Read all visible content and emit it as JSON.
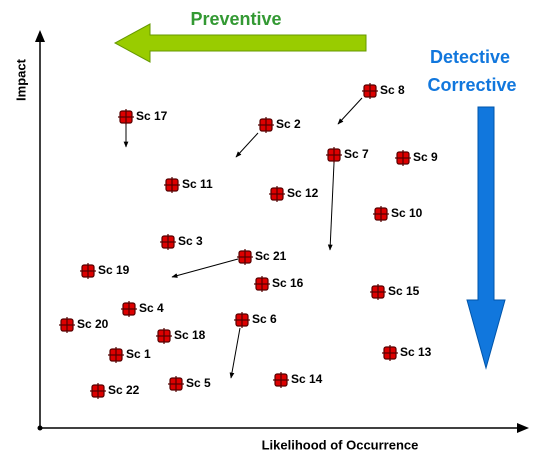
{
  "axes": {
    "y": "Impact",
    "x": "Likelihood of Occurrence"
  },
  "controls": {
    "preventive": "Preventive",
    "detective": "Detective",
    "corrective": "Corrective"
  },
  "nodes": [
    {
      "label": "Sc 1"
    },
    {
      "label": "Sc 2"
    },
    {
      "label": "Sc 3"
    },
    {
      "label": "Sc 4"
    },
    {
      "label": "Sc 5"
    },
    {
      "label": "Sc 6"
    },
    {
      "label": "Sc 7"
    },
    {
      "label": "Sc 8"
    },
    {
      "label": "Sc 9"
    },
    {
      "label": "Sc 10"
    },
    {
      "label": "Sc 11"
    },
    {
      "label": "Sc 12"
    },
    {
      "label": "Sc 13"
    },
    {
      "label": "Sc 14"
    },
    {
      "label": "Sc 15"
    },
    {
      "label": "Sc 16"
    },
    {
      "label": "Sc 17"
    },
    {
      "label": "Sc 18"
    },
    {
      "label": "Sc 19"
    },
    {
      "label": "Sc 20"
    },
    {
      "label": "Sc 21"
    },
    {
      "label": "Sc 22"
    }
  ]
}
